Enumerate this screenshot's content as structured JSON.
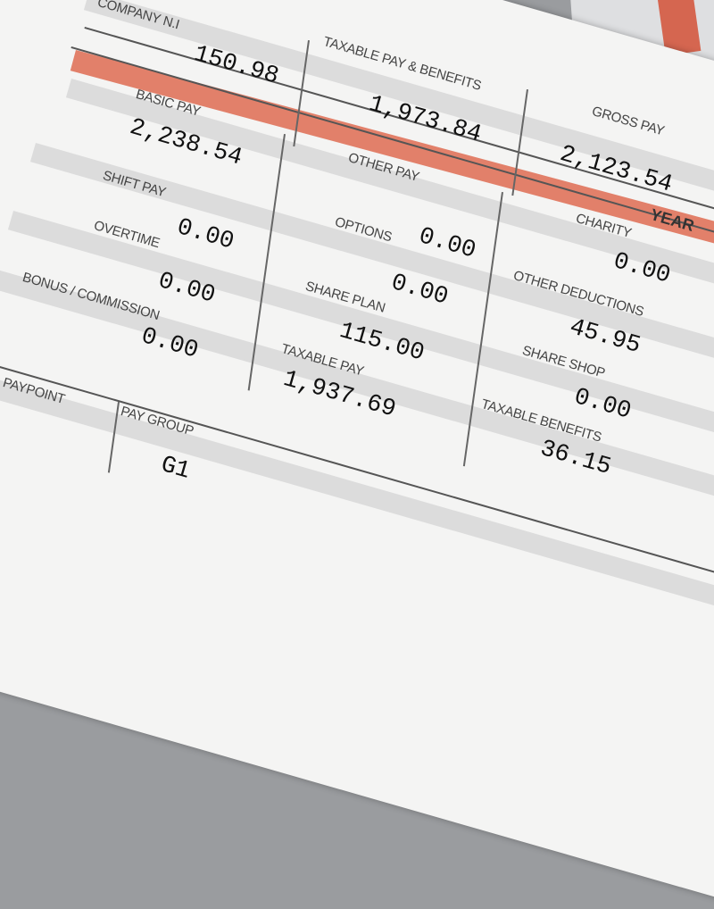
{
  "payslip": {
    "company_ni": {
      "label": "COMPANY N.I",
      "value": "150.98"
    },
    "taxable_pay_benefits": {
      "label": "TAXABLE PAY & BENEFITS",
      "value": "1,973.84"
    },
    "gross_pay": {
      "label": "GROSS PAY",
      "value": "2,123.54"
    },
    "band_label": "YEAR",
    "basic_pay": {
      "label": "BASIC PAY",
      "value": "2,238.54"
    },
    "shift_pay": {
      "label": "SHIFT PAY",
      "value": "0.00"
    },
    "other_pay": {
      "label": "OTHER PAY",
      "value": "0.00"
    },
    "charity": {
      "label": "CHARITY",
      "value": "0.00"
    },
    "overtime": {
      "label": "OVERTIME",
      "value": "0.00"
    },
    "options": {
      "label": "OPTIONS",
      "value": "0.00"
    },
    "other_deductions": {
      "label": "OTHER DEDUCTIONS",
      "value": "45.95"
    },
    "bonus_commission": {
      "label": "BONUS / COMMISSION",
      "value": "0.00"
    },
    "share_plan": {
      "label": "SHARE PLAN",
      "value": "115.00"
    },
    "share_shop": {
      "label": "SHARE SHOP",
      "value": "0.00"
    },
    "taxable_pay": {
      "label": "TAXABLE PAY",
      "value": "1,937.69"
    },
    "taxable_benefits": {
      "label": "TAXABLE BENEFITS",
      "value": "36.15"
    },
    "paypoint": {
      "label": "PAYPOINT"
    },
    "pay_group": {
      "label": "PAY GROUP",
      "value": "G1"
    }
  },
  "colors": {
    "accent_band": "#e2806a",
    "label_strip": "#dcdcdc",
    "paper": "#f4f4f3"
  }
}
